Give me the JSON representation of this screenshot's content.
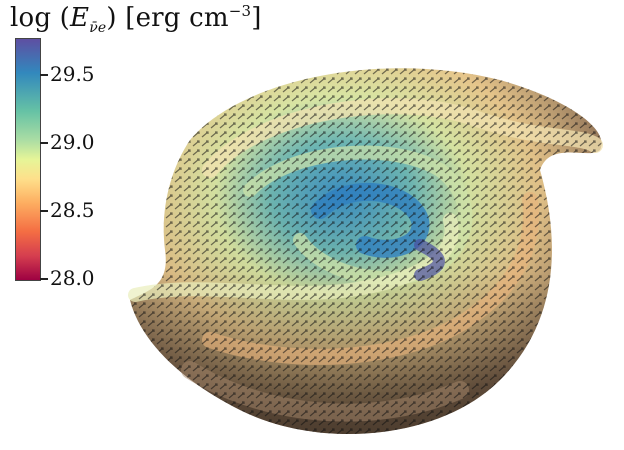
{
  "colorbar": {
    "title_prefix": "log",
    "title_var": "E",
    "title_sub": "ν̄e",
    "title_unit": "erg cm",
    "title_exp": "−3",
    "ticks": [
      {
        "label": "29.5",
        "value": 29.5
      },
      {
        "label": "29.0",
        "value": 29.0
      },
      {
        "label": "28.5",
        "value": 28.5
      },
      {
        "label": "28.0",
        "value": 28.0
      }
    ],
    "range": [
      28.0,
      29.7
    ],
    "colors": [
      "#5e4fa2",
      "#3288bd",
      "#66c2a5",
      "#abdda4",
      "#e6f598",
      "#fee08b",
      "#fdae61",
      "#f46d43",
      "#d53e4f",
      "#9e0142"
    ]
  }
}
